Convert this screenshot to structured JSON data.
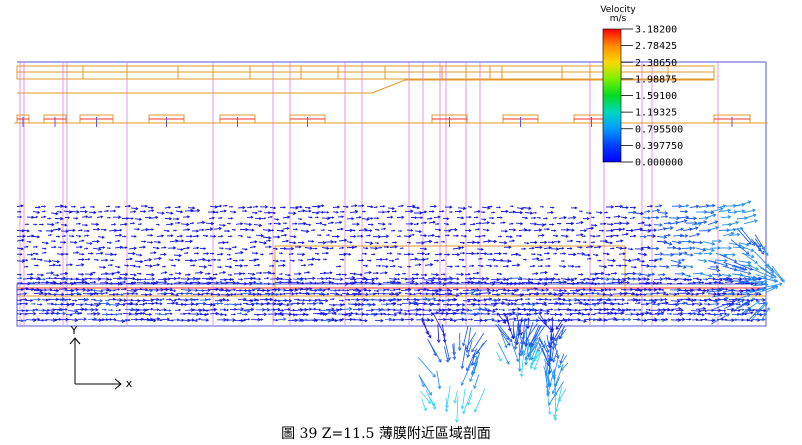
{
  "legend": {
    "title_line1": "Velocity",
    "title_line2": "m/s",
    "tick_labels": [
      "3.18200",
      "2.78425",
      "2.38650",
      "1.98875",
      "1.59100",
      "1.19325",
      "0.795500",
      "0.397750",
      "0.000000"
    ],
    "colors": [
      "#ff0000",
      "#ff8a00",
      "#ffd800",
      "#7cf000",
      "#00dc22",
      "#00d8c0",
      "#009cff",
      "#0040ff",
      "#0000ff"
    ]
  },
  "axes": {
    "y_label": "Y",
    "x_label": "x"
  },
  "caption": "圖 39 Z=11.5 薄膜附近區域剖面",
  "colors": {
    "geometry_orange": "#e39a2a",
    "geometry_pink": "#e07be0",
    "geometry_blue": "#5a5ad8",
    "geometry_red": "#ff3030"
  }
}
